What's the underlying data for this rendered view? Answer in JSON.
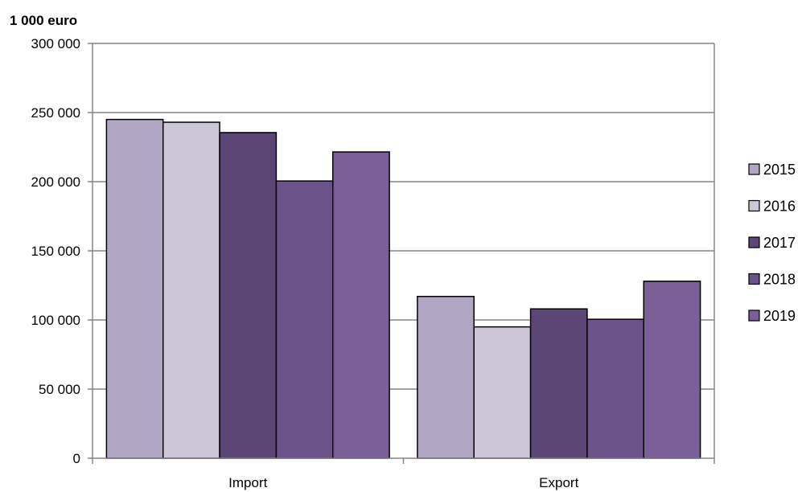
{
  "chart_data": {
    "type": "bar",
    "unit_label": "1 000 euro",
    "categories": [
      "Import",
      "Export"
    ],
    "series": [
      {
        "name": "2015",
        "values": [
          245000,
          117000
        ],
        "color": "#b1a6c4"
      },
      {
        "name": "2016",
        "values": [
          243000,
          95000
        ],
        "color": "#cdc6d8"
      },
      {
        "name": "2017",
        "values": [
          235500,
          108000
        ],
        "color": "#5c4675"
      },
      {
        "name": "2018",
        "values": [
          200500,
          100500
        ],
        "color": "#6b5289"
      },
      {
        "name": "2019",
        "values": [
          221500,
          128000
        ],
        "color": "#7b5f99"
      }
    ],
    "ylim": [
      0,
      300000
    ],
    "yticks": [
      0,
      50000,
      100000,
      150000,
      200000,
      250000,
      300000
    ],
    "ytick_labels": [
      "0",
      "50 000",
      "100 000",
      "150 000",
      "200 000",
      "250 000",
      "300 000"
    ],
    "grid": true,
    "legend_position": "right",
    "colors": {
      "grid": "#868686",
      "axis": "#868686",
      "bar_edge": "#000000"
    }
  }
}
